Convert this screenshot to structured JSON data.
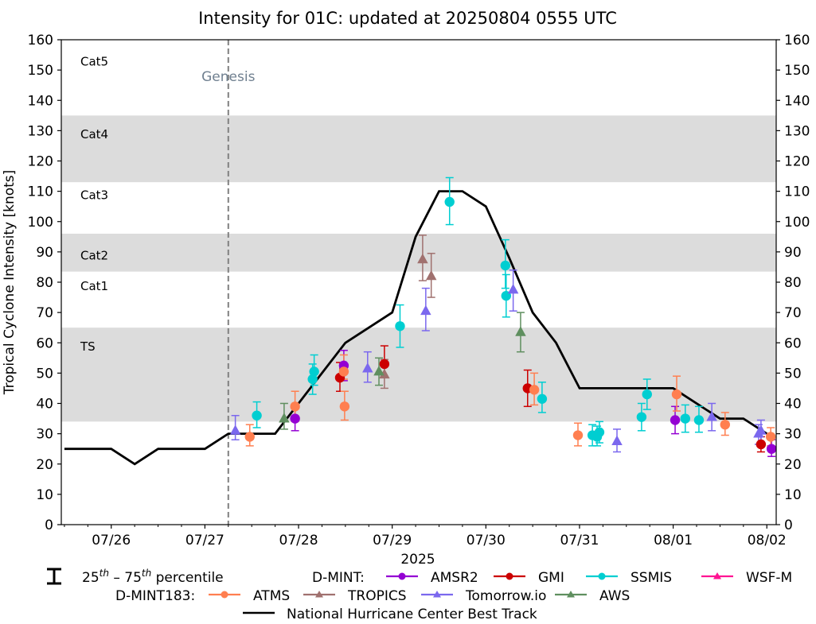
{
  "chart_data": {
    "type": "scatter",
    "title": "Intensity for 01C: updated at 20250804 0555 UTC",
    "xlabel": "2025",
    "ylabel": "Tropical Cyclone Intensity [knots]",
    "time_unit": "hours since 2025-07-26 00Z",
    "xlim_hours": [
      -12.8,
      170.4
    ],
    "ylim": [
      0,
      160
    ],
    "y_ticks": [
      0,
      10,
      20,
      30,
      40,
      50,
      60,
      70,
      80,
      90,
      100,
      110,
      120,
      130,
      140,
      150,
      160
    ],
    "x_ticks": [
      {
        "hour": 0,
        "label": "07/26"
      },
      {
        "hour": 24,
        "label": "07/27"
      },
      {
        "hour": 48,
        "label": "07/28"
      },
      {
        "hour": 72,
        "label": "07/29"
      },
      {
        "hour": 96,
        "label": "07/30"
      },
      {
        "hour": 120,
        "label": "07/31"
      },
      {
        "hour": 144,
        "label": "08/01"
      },
      {
        "hour": 168,
        "label": "08/02"
      }
    ],
    "x_minor_tick_interval_hours": 6,
    "categories": [
      {
        "label": "Cat5",
        "min": 137,
        "max": 160,
        "shaded": false,
        "label_value": 153
      },
      {
        "label": "Cat4",
        "min": 113,
        "max": 135,
        "shaded": true,
        "label_value": 129
      },
      {
        "label": "Cat3",
        "min": 96,
        "max": 113,
        "shaded": false,
        "label_value": 109
      },
      {
        "label": "Cat2",
        "min": 83.5,
        "max": 96,
        "shaded": true,
        "label_value": 89
      },
      {
        "label": "Cat1",
        "min": 64,
        "max": 83.5,
        "shaded": false,
        "label_value": 79
      },
      {
        "label": "TS",
        "min": 34,
        "max": 65,
        "shaded": true,
        "label_value": 59
      }
    ],
    "genesis": {
      "hour": 30,
      "label": "Genesis"
    },
    "best_track": {
      "name": "National Hurricane Center Best Track",
      "color": "#000000",
      "points": [
        [
          -12,
          25
        ],
        [
          0,
          25
        ],
        [
          6,
          20
        ],
        [
          12,
          25
        ],
        [
          24,
          25
        ],
        [
          30,
          30
        ],
        [
          42,
          30
        ],
        [
          60,
          60
        ],
        [
          72,
          70
        ],
        [
          78,
          95
        ],
        [
          84,
          110
        ],
        [
          90,
          110
        ],
        [
          96,
          105
        ],
        [
          102,
          88
        ],
        [
          108,
          70
        ],
        [
          114,
          60
        ],
        [
          120,
          45
        ],
        [
          144,
          45
        ],
        [
          156,
          35
        ],
        [
          162,
          35
        ],
        [
          168,
          30
        ]
      ]
    },
    "series": [
      {
        "name": "AMSR2",
        "group": "D-MINT",
        "color": "#9400D3",
        "marker": "circle",
        "points": [
          [
            47.1,
            35,
            31,
            39
          ],
          [
            59.6,
            52.5,
            47.5,
            57.5
          ],
          [
            144.5,
            34.5,
            30,
            39
          ],
          [
            169.2,
            25,
            22.5,
            28
          ]
        ]
      },
      {
        "name": "GMI",
        "group": "D-MINT",
        "color": "#CC0000",
        "marker": "circle",
        "points": [
          [
            58.6,
            48.5,
            44,
            53.5
          ],
          [
            70,
            53,
            48.5,
            59
          ],
          [
            106.7,
            45,
            39,
            51
          ],
          [
            166.5,
            26.5,
            24,
            29
          ]
        ]
      },
      {
        "name": "SSMIS",
        "group": "D-MINT",
        "color": "#00CED1",
        "marker": "circle",
        "points": [
          [
            37.3,
            36,
            32,
            40.5
          ],
          [
            51.6,
            48,
            43,
            53
          ],
          [
            52,
            50.5,
            46,
            56
          ],
          [
            74,
            65.5,
            58.5,
            72.5
          ],
          [
            86.7,
            106.5,
            99,
            114.5
          ],
          [
            101,
            85.5,
            78,
            94
          ],
          [
            101.2,
            75.5,
            68.5,
            82.5
          ],
          [
            110.4,
            41.5,
            37,
            47
          ],
          [
            123.3,
            29.5,
            26,
            33
          ],
          [
            124.5,
            29,
            26,
            32.5
          ],
          [
            125.1,
            30.5,
            27,
            34
          ],
          [
            135.9,
            35.5,
            31,
            40
          ],
          [
            137.3,
            43,
            38,
            48
          ],
          [
            147.1,
            35,
            30.5,
            39.5
          ],
          [
            150.6,
            34.5,
            30.5,
            39
          ]
        ]
      },
      {
        "name": "WSF-M",
        "group": "D-MINT",
        "color": "#FF1493",
        "marker": "triangle",
        "points": []
      },
      {
        "name": "ATMS",
        "group": "D-MINT183",
        "color": "#FF7F50",
        "marker": "circle",
        "points": [
          [
            35.5,
            29,
            26,
            33
          ],
          [
            47.1,
            39,
            34,
            44
          ],
          [
            59.6,
            50.5,
            48,
            56
          ],
          [
            59.8,
            39,
            34.5,
            44
          ],
          [
            108.4,
            44.5,
            39.5,
            50
          ],
          [
            119.6,
            29.5,
            26,
            33.5
          ],
          [
            144.9,
            43,
            37.5,
            49
          ],
          [
            157.3,
            33,
            29.5,
            37
          ],
          [
            169,
            29,
            26,
            32
          ]
        ]
      },
      {
        "name": "TROPICS",
        "group": "D-MINT183",
        "color": "#A0716F",
        "marker": "triangle",
        "points": [
          [
            70,
            49.5,
            45,
            54.5
          ],
          [
            79.8,
            87.5,
            80.5,
            95.5
          ],
          [
            82,
            82,
            75,
            89.5
          ]
        ]
      },
      {
        "name": "Tomorrow.io",
        "group": "D-MINT183",
        "color": "#7B68EE",
        "marker": "triangle",
        "points": [
          [
            31.8,
            31,
            28,
            36
          ],
          [
            65.7,
            51.5,
            47,
            57
          ],
          [
            80.6,
            70.5,
            64,
            78
          ],
          [
            103,
            77.5,
            70.5,
            84
          ],
          [
            129.6,
            27.5,
            24,
            31.5
          ],
          [
            153.9,
            35.5,
            31,
            40
          ],
          [
            165.9,
            30,
            26.5,
            33
          ],
          [
            166.5,
            31,
            27,
            34.5
          ]
        ]
      },
      {
        "name": "AWS",
        "group": "D-MINT183",
        "color": "#5F8F5F",
        "marker": "triangle",
        "points": [
          [
            44.3,
            35,
            31.5,
            40
          ],
          [
            68.6,
            50.5,
            46,
            55
          ],
          [
            104.9,
            63.5,
            57,
            70
          ]
        ]
      }
    ],
    "point_format": "[hour, value, p25, p75]",
    "legend": {
      "placement": "bottom",
      "errorbar_label": "25th – 75th percentile",
      "errorbar_label_parts": {
        "a": "25",
        "a_sup": "th",
        "dash": " – ",
        "b": "75",
        "b_sup": "th",
        "rest": " percentile"
      },
      "groups": [
        {
          "label": "D-MINT:",
          "items": [
            "AMSR2",
            "GMI",
            "SSMIS",
            "WSF-M"
          ]
        },
        {
          "label": "D-MINT183:",
          "items": [
            "ATMS",
            "TROPICS",
            "Tomorrow.io",
            "AWS"
          ]
        }
      ],
      "best_track_label": "National Hurricane Center Best Track"
    },
    "band_color": "#DCDCDC",
    "genesis_color": "#808080",
    "genesis_label_color": "#708090",
    "grid": false
  }
}
